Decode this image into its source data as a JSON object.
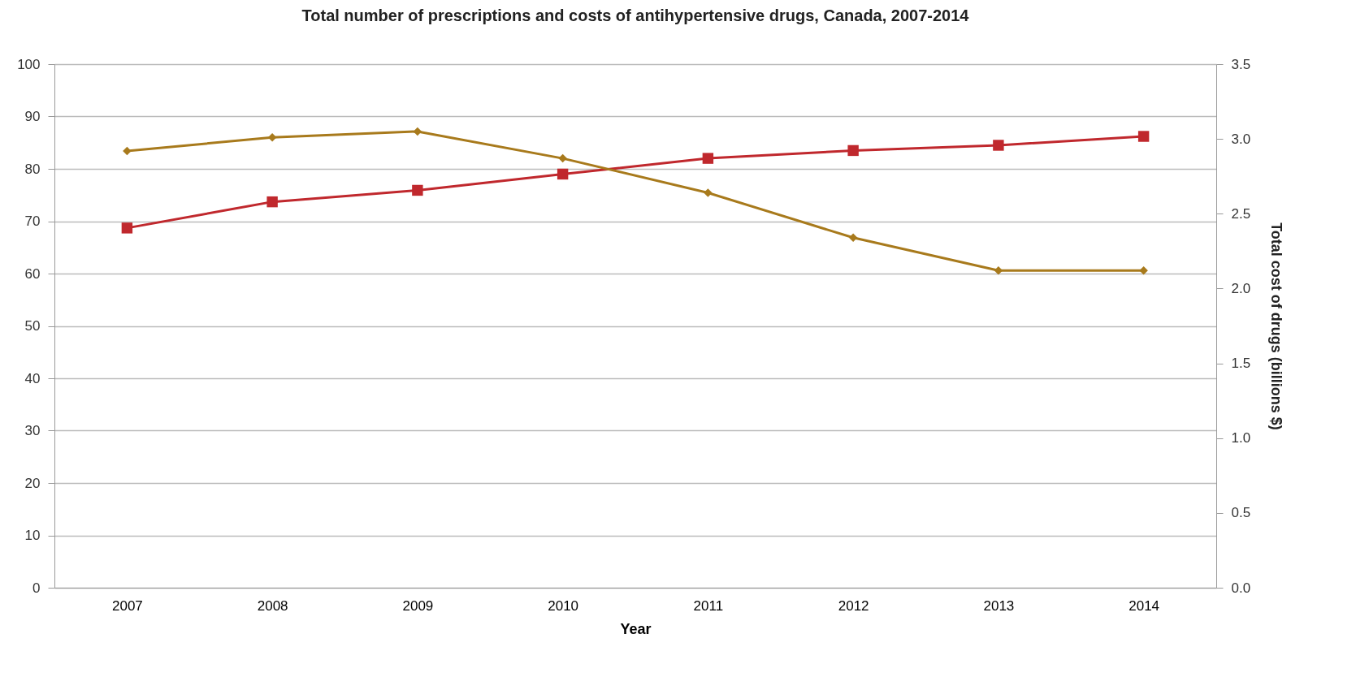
{
  "chart_data": {
    "type": "line",
    "title": "Total number of prescriptions and costs of antihypertensive drugs, Canada, 2007-2014",
    "xlabel": "Year",
    "y2label": "Total cost of drugs (billions $)",
    "categories": [
      "2007",
      "2008",
      "2009",
      "2010",
      "2011",
      "2012",
      "2013",
      "2014"
    ],
    "series": [
      {
        "color": "#c0282d",
        "marker": "square",
        "values": [
          68.7,
          73.7,
          75.9,
          79.0,
          82.0,
          83.5,
          84.5,
          86.2
        ]
      },
      {
        "color": "#a87a1c",
        "marker": "diamond",
        "axis": "y2",
        "values": [
          2.92,
          3.01,
          3.05,
          2.87,
          2.64,
          2.34,
          2.12,
          2.12
        ]
      }
    ],
    "ylim": [
      0,
      100
    ],
    "yticks": [
      0,
      10,
      20,
      30,
      40,
      50,
      60,
      70,
      80,
      90,
      100
    ],
    "y2lim": [
      0,
      3.5
    ],
    "y2ticks": [
      {
        "value": 0,
        "label": "0.0"
      },
      {
        "value": 0.5,
        "label": "0.5"
      },
      {
        "value": 1,
        "label": "1.0"
      },
      {
        "value": 1.5,
        "label": "1.5"
      },
      {
        "value": 2,
        "label": "2.0"
      },
      {
        "value": 2.5,
        "label": "2.5"
      },
      {
        "value": 3,
        "label": "3.0"
      },
      {
        "value": 3.5,
        "label": "3.5"
      }
    ],
    "grid": "y"
  }
}
